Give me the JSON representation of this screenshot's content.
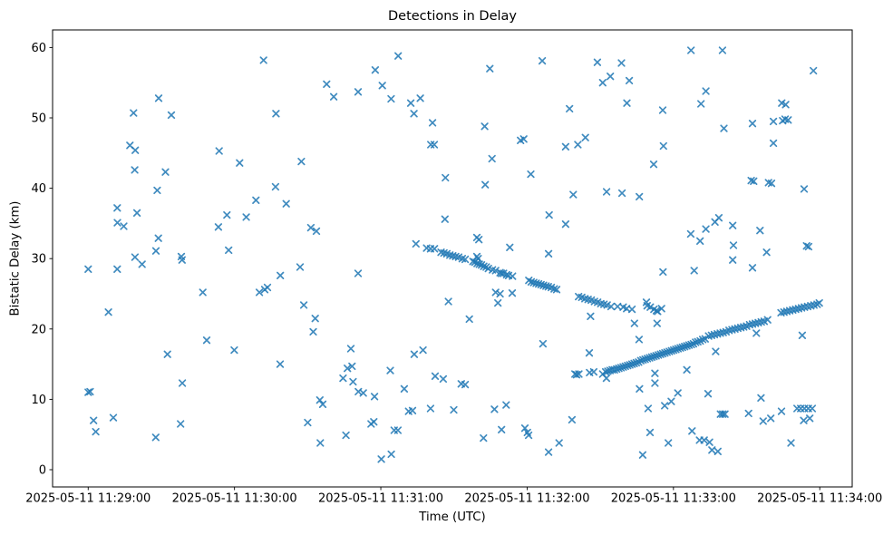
{
  "chart": {
    "title": "Detections in Delay",
    "xlabel": "Time (UTC)",
    "ylabel": "Bistatic Delay (km)"
  },
  "chart_data": {
    "type": "scatter",
    "marker": "x",
    "marker_color": "#1f77b4",
    "title": "Detections in Delay",
    "xlabel": "Time (UTC)",
    "ylabel": "Bistatic Delay (km)",
    "grid": false,
    "legend": "none",
    "x_tick_seconds": [
      0,
      60,
      120,
      180,
      240,
      300
    ],
    "x_tick_labels": [
      "2025-05-11 11:29:00",
      "2025-05-11 11:30:00",
      "2025-05-11 11:31:00",
      "2025-05-11 11:32:00",
      "2025-05-11 11:33:00",
      "2025-05-11 11:34:00"
    ],
    "y_ticks": [
      0,
      10,
      20,
      30,
      40,
      50,
      60
    ],
    "xlim_seconds": [
      -14.6,
      313.3
    ],
    "ylim": [
      -2.45,
      62.5
    ],
    "x_unit": "seconds after 2025-05-11 11:29:00 UTC",
    "y_unit": "km",
    "points": [
      [
        0,
        28.5
      ],
      [
        0,
        11.0
      ],
      [
        0.8,
        11.1
      ],
      [
        2.2,
        7.0
      ],
      [
        3.1,
        5.4
      ],
      [
        8.3,
        22.4
      ],
      [
        10.3,
        7.4
      ],
      [
        11.9,
        37.2
      ],
      [
        11.9,
        28.5
      ],
      [
        12.0,
        35.1
      ],
      [
        14.6,
        34.6
      ],
      [
        17.1,
        46.1
      ],
      [
        18.6,
        50.7
      ],
      [
        19.1,
        42.6
      ],
      [
        19.3,
        45.4
      ],
      [
        19.2,
        30.2
      ],
      [
        20.0,
        36.5
      ],
      [
        22.1,
        29.2
      ],
      [
        27.7,
        4.6
      ],
      [
        27.8,
        31.1
      ],
      [
        28.8,
        32.9
      ],
      [
        28.3,
        39.7
      ],
      [
        28.9,
        52.8
      ],
      [
        31.7,
        42.3
      ],
      [
        32.5,
        16.4
      ],
      [
        34.1,
        50.4
      ],
      [
        37.9,
        6.5
      ],
      [
        38.2,
        30.3
      ],
      [
        38.5,
        29.8
      ],
      [
        38.6,
        12.3
      ],
      [
        47.0,
        25.2
      ],
      [
        48.6,
        18.4
      ],
      [
        53.4,
        34.5
      ],
      [
        53.7,
        45.3
      ],
      [
        56.9,
        36.2
      ],
      [
        57.6,
        31.2
      ],
      [
        59.9,
        17.0
      ],
      [
        62.1,
        43.6
      ],
      [
        64.8,
        35.9
      ],
      [
        68.8,
        38.3
      ],
      [
        71.9,
        58.2
      ],
      [
        70.2,
        25.2
      ],
      [
        72.4,
        25.6
      ],
      [
        73.5,
        25.9
      ],
      [
        77.0,
        50.6
      ],
      [
        76.8,
        40.2
      ],
      [
        78.8,
        27.6
      ],
      [
        78.7,
        15.0
      ],
      [
        81.2,
        37.8
      ],
      [
        86.9,
        28.8
      ],
      [
        87.4,
        43.8
      ],
      [
        88.4,
        23.4
      ],
      [
        90.0,
        6.7
      ],
      [
        91.3,
        34.4
      ],
      [
        93.6,
        33.9
      ],
      [
        93.1,
        21.5
      ],
      [
        92.3,
        19.6
      ],
      [
        95.0,
        9.9
      ],
      [
        96.2,
        9.3
      ],
      [
        95.2,
        3.8
      ],
      [
        97.8,
        54.8
      ],
      [
        100.7,
        53.0
      ],
      [
        104.5,
        13.0
      ],
      [
        105.7,
        4.9
      ],
      [
        106.3,
        14.4
      ],
      [
        108.2,
        14.7
      ],
      [
        107.7,
        17.2
      ],
      [
        108.6,
        12.5
      ],
      [
        110.7,
        53.7
      ],
      [
        110.7,
        27.9
      ],
      [
        110.8,
        11.1
      ],
      [
        112.8,
        10.9
      ],
      [
        116.0,
        6.5
      ],
      [
        117.1,
        6.8
      ],
      [
        117.4,
        10.4
      ],
      [
        117.7,
        56.8
      ],
      [
        120.6,
        54.6
      ],
      [
        120.2,
        1.5
      ],
      [
        124.3,
        2.2
      ],
      [
        123.9,
        14.1
      ],
      [
        124.2,
        52.7
      ],
      [
        125.5,
        5.6
      ],
      [
        127.0,
        5.6
      ],
      [
        127.1,
        58.8
      ],
      [
        129.6,
        11.5
      ],
      [
        131.4,
        8.3
      ],
      [
        133.0,
        8.4
      ],
      [
        132.3,
        52.1
      ],
      [
        133.6,
        50.6
      ],
      [
        133.7,
        16.4
      ],
      [
        136.2,
        52.8
      ],
      [
        137.3,
        17.0
      ],
      [
        140.4,
        8.7
      ],
      [
        141.2,
        49.3
      ],
      [
        140.5,
        46.2
      ],
      [
        141.9,
        46.2
      ],
      [
        142.3,
        13.3
      ],
      [
        145.6,
        12.9
      ],
      [
        146.3,
        35.6
      ],
      [
        146.5,
        41.5
      ],
      [
        147.7,
        23.9
      ],
      [
        149.9,
        8.5
      ],
      [
        153.0,
        12.2
      ],
      [
        154.6,
        12.1
      ],
      [
        156.3,
        21.4
      ],
      [
        159.4,
        33.0
      ],
      [
        160.2,
        32.7
      ],
      [
        162.1,
        4.5
      ],
      [
        162.8,
        40.5
      ],
      [
        164.7,
        57.0
      ],
      [
        162.6,
        48.8
      ],
      [
        165.6,
        44.2
      ],
      [
        166.6,
        8.6
      ],
      [
        168.0,
        23.7
      ],
      [
        169.5,
        5.7
      ],
      [
        171.4,
        9.2
      ],
      [
        172.9,
        31.6
      ],
      [
        167.1,
        25.2
      ],
      [
        168.9,
        25.0
      ],
      [
        173.9,
        25.1
      ],
      [
        177.3,
        46.8
      ],
      [
        178.6,
        47.0
      ],
      [
        179.1,
        5.9
      ],
      [
        180.1,
        5.3
      ],
      [
        180.6,
        4.9
      ],
      [
        181.5,
        42.0
      ],
      [
        186.2,
        58.1
      ],
      [
        186.5,
        17.9
      ],
      [
        188.8,
        2.5
      ],
      [
        189.0,
        36.2
      ],
      [
        188.8,
        30.7
      ],
      [
        193.1,
        3.8
      ],
      [
        195.8,
        34.9
      ],
      [
        195.8,
        45.9
      ],
      [
        197.4,
        51.3
      ],
      [
        198.4,
        7.1
      ],
      [
        198.9,
        39.1
      ],
      [
        200.8,
        46.2
      ],
      [
        203.9,
        47.2
      ],
      [
        205.5,
        16.6
      ],
      [
        206.0,
        21.8
      ],
      [
        205.6,
        13.8
      ],
      [
        207.3,
        13.9
      ],
      [
        208.8,
        57.9
      ],
      [
        211.0,
        55.0
      ],
      [
        212.5,
        13.0
      ],
      [
        212.6,
        39.5
      ],
      [
        214.1,
        55.9
      ],
      [
        218.7,
        57.8
      ],
      [
        218.9,
        39.3
      ],
      [
        220.9,
        52.1
      ],
      [
        221.9,
        55.3
      ],
      [
        224.0,
        20.8
      ],
      [
        225.9,
        18.5
      ],
      [
        226.1,
        11.5
      ],
      [
        226.0,
        38.8
      ],
      [
        227.4,
        2.1
      ],
      [
        229.6,
        8.7
      ],
      [
        230.4,
        5.3
      ],
      [
        231.9,
        43.4
      ],
      [
        232.4,
        13.7
      ],
      [
        232.4,
        12.3
      ],
      [
        233.3,
        20.8
      ],
      [
        235.6,
        51.1
      ],
      [
        235.7,
        28.1
      ],
      [
        235.9,
        46.0
      ],
      [
        236.4,
        9.1
      ],
      [
        237.9,
        3.8
      ],
      [
        239.1,
        9.7
      ],
      [
        241.8,
        10.9
      ],
      [
        245.5,
        14.2
      ],
      [
        247.2,
        59.6
      ],
      [
        247.1,
        33.5
      ],
      [
        247.6,
        5.5
      ],
      [
        248.5,
        28.3
      ],
      [
        250.7,
        4.2
      ],
      [
        250.9,
        32.5
      ],
      [
        251.3,
        52.0
      ],
      [
        252.6,
        4.2
      ],
      [
        253.3,
        34.2
      ],
      [
        253.3,
        53.8
      ],
      [
        254.2,
        10.8
      ],
      [
        254.8,
        3.9
      ],
      [
        255.8,
        2.8
      ],
      [
        257.0,
        35.2
      ],
      [
        257.3,
        16.8
      ],
      [
        258.2,
        2.6
      ],
      [
        258.6,
        35.8
      ],
      [
        259.3,
        7.9
      ],
      [
        260.1,
        59.6
      ],
      [
        260.2,
        7.9
      ],
      [
        260.7,
        48.5
      ],
      [
        261.1,
        7.9
      ],
      [
        264.3,
        34.7
      ],
      [
        264.3,
        29.8
      ],
      [
        264.6,
        31.9
      ],
      [
        270.8,
        8.0
      ],
      [
        271.9,
        41.1
      ],
      [
        272.9,
        41.0
      ],
      [
        272.4,
        49.2
      ],
      [
        272.4,
        28.7
      ],
      [
        274.0,
        19.4
      ],
      [
        275.5,
        34.0
      ],
      [
        275.9,
        10.2
      ],
      [
        276.8,
        6.9
      ],
      [
        278.2,
        30.9
      ],
      [
        279.0,
        40.8
      ],
      [
        279.9,
        7.3
      ],
      [
        280.2,
        40.7
      ],
      [
        281.0,
        49.5
      ],
      [
        281.0,
        46.4
      ],
      [
        284.3,
        8.3
      ],
      [
        284.4,
        52.1
      ],
      [
        284.8,
        49.6
      ],
      [
        285.8,
        49.8
      ],
      [
        286.0,
        51.9
      ],
      [
        287.0,
        49.7
      ],
      [
        288.2,
        3.8
      ],
      [
        290.7,
        8.7
      ],
      [
        292.2,
        8.7
      ],
      [
        292.8,
        19.1
      ],
      [
        293.4,
        7.0
      ],
      [
        293.6,
        39.9
      ],
      [
        293.7,
        8.7
      ],
      [
        294.6,
        31.8
      ],
      [
        295.3,
        8.7
      ],
      [
        295.4,
        31.7
      ],
      [
        295.9,
        7.3
      ],
      [
        296.9,
        8.7
      ],
      [
        297.4,
        56.7
      ],
      [
        134.4,
        32.1
      ],
      [
        138.8,
        31.5
      ],
      [
        140.4,
        31.4
      ],
      [
        142.0,
        31.4
      ],
      [
        144.7,
        30.9
      ],
      [
        145.9,
        30.8
      ],
      [
        147.1,
        30.7
      ],
      [
        148.3,
        30.5
      ],
      [
        149.5,
        30.4
      ],
      [
        150.7,
        30.3
      ],
      [
        151.9,
        30.2
      ],
      [
        153.4,
        30.0
      ],
      [
        154.6,
        29.9
      ],
      [
        157.8,
        29.6
      ],
      [
        158.6,
        29.5
      ],
      [
        159.5,
        29.3
      ],
      [
        160.4,
        29.2
      ],
      [
        161.3,
        29.1
      ],
      [
        162.2,
        28.9
      ],
      [
        163.2,
        28.8
      ],
      [
        164.1,
        28.6
      ],
      [
        165.8,
        28.4
      ],
      [
        167.1,
        28.3
      ],
      [
        159.4,
        30.3
      ],
      [
        159.9,
        30.0
      ],
      [
        168.9,
        28.0
      ],
      [
        169.5,
        27.9
      ],
      [
        170.3,
        27.9
      ],
      [
        171.6,
        27.7
      ],
      [
        172.4,
        27.6
      ],
      [
        174.0,
        27.5
      ],
      [
        180.7,
        26.9
      ],
      [
        181.7,
        26.7
      ],
      [
        182.7,
        26.6
      ],
      [
        183.7,
        26.5
      ],
      [
        184.7,
        26.4
      ],
      [
        185.7,
        26.3
      ],
      [
        186.7,
        26.2
      ],
      [
        187.7,
        26.1
      ],
      [
        188.7,
        26.0
      ],
      [
        189.9,
        25.9
      ],
      [
        191.1,
        25.7
      ],
      [
        192.1,
        25.6
      ],
      [
        201.1,
        24.6
      ],
      [
        202.4,
        24.5
      ],
      [
        203.7,
        24.3
      ],
      [
        205.0,
        24.2
      ],
      [
        206.3,
        24.1
      ],
      [
        207.6,
        23.9
      ],
      [
        208.9,
        23.8
      ],
      [
        210.2,
        23.6
      ],
      [
        211.5,
        23.5
      ],
      [
        212.8,
        23.4
      ],
      [
        214.4,
        23.2
      ],
      [
        217.1,
        23.2
      ],
      [
        219.4,
        23.1
      ],
      [
        220.8,
        22.9
      ],
      [
        223.0,
        22.8
      ],
      [
        228.9,
        23.8
      ],
      [
        229.2,
        23.3
      ],
      [
        230.5,
        23.1
      ],
      [
        232.0,
        22.8
      ],
      [
        233.0,
        22.6
      ],
      [
        233.5,
        22.5
      ],
      [
        235.1,
        22.9
      ],
      [
        199.6,
        13.6
      ],
      [
        200.3,
        13.5
      ],
      [
        201.2,
        13.6
      ],
      [
        211.0,
        13.6
      ],
      [
        212.2,
        13.9
      ],
      [
        213.1,
        14.0
      ],
      [
        214.0,
        14.1
      ],
      [
        214.9,
        14.2
      ],
      [
        215.8,
        14.2
      ],
      [
        216.7,
        14.3
      ],
      [
        217.6,
        14.4
      ],
      [
        218.5,
        14.5
      ],
      [
        219.4,
        14.6
      ],
      [
        220.3,
        14.7
      ],
      [
        221.2,
        14.8
      ],
      [
        222.1,
        14.9
      ],
      [
        223.0,
        15.0
      ],
      [
        223.9,
        15.1
      ],
      [
        224.8,
        15.2
      ],
      [
        225.7,
        15.3
      ],
      [
        226.6,
        15.5
      ],
      [
        227.5,
        15.6
      ],
      [
        228.4,
        15.7
      ],
      [
        229.3,
        15.8
      ],
      [
        230.2,
        15.9
      ],
      [
        231.1,
        16.0
      ],
      [
        232.0,
        16.1
      ],
      [
        232.9,
        16.2
      ],
      [
        233.8,
        16.3
      ],
      [
        234.7,
        16.4
      ],
      [
        235.6,
        16.5
      ],
      [
        236.5,
        16.6
      ],
      [
        237.4,
        16.7
      ],
      [
        238.3,
        16.8
      ],
      [
        239.2,
        16.9
      ],
      [
        240.1,
        17.0
      ],
      [
        241.0,
        17.1
      ],
      [
        241.9,
        17.2
      ],
      [
        242.8,
        17.3
      ],
      [
        243.7,
        17.4
      ],
      [
        244.6,
        17.5
      ],
      [
        245.5,
        17.6
      ],
      [
        246.4,
        17.7
      ],
      [
        247.3,
        17.8
      ],
      [
        248.2,
        17.9
      ],
      [
        249.1,
        18.1
      ],
      [
        250.0,
        18.2
      ],
      [
        251.0,
        18.3
      ],
      [
        252.0,
        18.5
      ],
      [
        253.0,
        18.6
      ],
      [
        254.4,
        19.0
      ],
      [
        255.6,
        19.1
      ],
      [
        256.8,
        19.2
      ],
      [
        258.0,
        19.3
      ],
      [
        259.2,
        19.4
      ],
      [
        260.4,
        19.5
      ],
      [
        261.6,
        19.6
      ],
      [
        262.8,
        19.8
      ],
      [
        264.0,
        19.9
      ],
      [
        265.2,
        20.0
      ],
      [
        266.4,
        20.1
      ],
      [
        267.6,
        20.2
      ],
      [
        268.8,
        20.3
      ],
      [
        270.0,
        20.4
      ],
      [
        271.2,
        20.6
      ],
      [
        272.4,
        20.7
      ],
      [
        273.6,
        20.8
      ],
      [
        274.8,
        20.9
      ],
      [
        276.0,
        21.0
      ],
      [
        277.2,
        21.1
      ],
      [
        278.6,
        21.3
      ],
      [
        284.1,
        22.3
      ],
      [
        285.3,
        22.4
      ],
      [
        286.5,
        22.5
      ],
      [
        287.7,
        22.6
      ],
      [
        288.9,
        22.7
      ],
      [
        290.1,
        22.8
      ],
      [
        291.3,
        22.9
      ],
      [
        292.5,
        23.0
      ],
      [
        293.7,
        23.1
      ],
      [
        295.0,
        23.2
      ],
      [
        296.3,
        23.3
      ],
      [
        297.6,
        23.4
      ],
      [
        298.9,
        23.5
      ],
      [
        299.8,
        23.7
      ]
    ]
  }
}
